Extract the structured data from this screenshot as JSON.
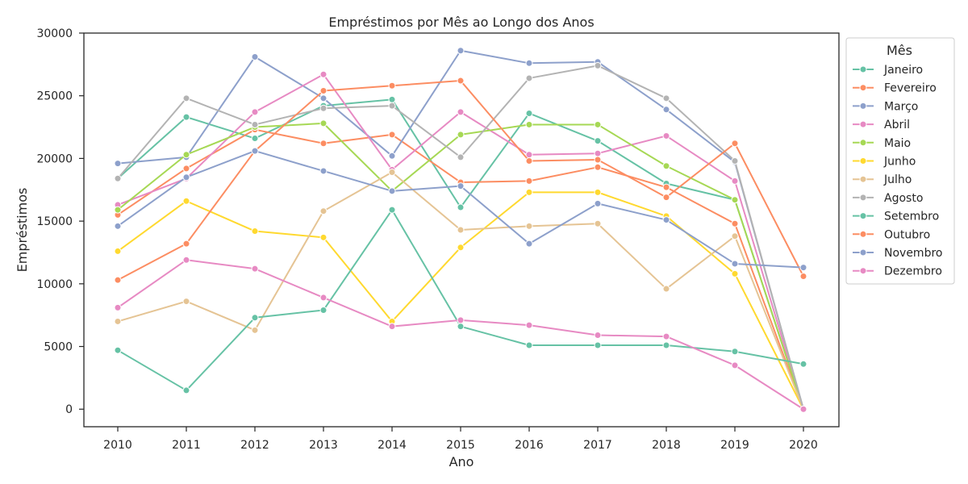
{
  "chart_data": {
    "type": "line",
    "title": "Empréstimos por Mês ao Longo dos Anos",
    "xlabel": "Ano",
    "ylabel": "Empréstimos",
    "x": [
      2010,
      2011,
      2012,
      2013,
      2014,
      2015,
      2016,
      2017,
      2018,
      2019,
      2020
    ],
    "x_tick_labels": [
      "2010",
      "2011",
      "2012",
      "2013",
      "2014",
      "2015",
      "2016",
      "2017",
      "2018",
      "2019",
      "2020"
    ],
    "ylim": [
      -1400,
      30000
    ],
    "y_ticks": [
      0,
      5000,
      10000,
      15000,
      20000,
      25000,
      30000
    ],
    "y_tick_labels": [
      "0",
      "5000",
      "10000",
      "15000",
      "20000",
      "25000",
      "30000"
    ],
    "grid": false,
    "legend": {
      "title": "Mês",
      "placement": "outside-right"
    },
    "series": [
      {
        "name": "Janeiro",
        "color": "#66c2a5",
        "values": [
          18400,
          23300,
          21600,
          24200,
          24700,
          16100,
          23600,
          21400,
          18000,
          16700,
          0
        ]
      },
      {
        "name": "Fevereiro",
        "color": "#fc8d62",
        "values": [
          15500,
          19200,
          22300,
          21200,
          21900,
          18100,
          18200,
          19300,
          17700,
          14800,
          0
        ]
      },
      {
        "name": "Março",
        "color": "#8da0cb",
        "values": [
          19600,
          20100,
          28100,
          24800,
          20200,
          28600,
          27600,
          27700,
          23900,
          19700,
          0
        ]
      },
      {
        "name": "Abril",
        "color": "#e78ac3",
        "values": [
          16300,
          18400,
          23700,
          26700,
          19100,
          23700,
          20300,
          20400,
          21800,
          18200,
          0
        ]
      },
      {
        "name": "Maio",
        "color": "#a6d854",
        "values": [
          15900,
          20300,
          22500,
          22800,
          17400,
          21900,
          22700,
          22700,
          19400,
          16700,
          0
        ]
      },
      {
        "name": "Junho",
        "color": "#ffd92f",
        "values": [
          12600,
          16600,
          14200,
          13700,
          7000,
          12900,
          17300,
          17300,
          15400,
          10800,
          0
        ]
      },
      {
        "name": "Julho",
        "color": "#e5c494",
        "values": [
          7000,
          8600,
          6300,
          15800,
          18900,
          14300,
          14600,
          14800,
          9600,
          13800,
          0
        ]
      },
      {
        "name": "Agosto",
        "color": "#b3b3b3",
        "values": [
          18400,
          24800,
          22700,
          24000,
          24200,
          20100,
          26400,
          27400,
          24800,
          19800,
          0
        ]
      },
      {
        "name": "Setembro",
        "color": "#66c2a5",
        "values": [
          4700,
          1500,
          7300,
          7900,
          15900,
          6600,
          5100,
          5100,
          5100,
          4600,
          3600
        ]
      },
      {
        "name": "Outubro",
        "color": "#fc8d62",
        "values": [
          10300,
          13200,
          20600,
          25400,
          25800,
          26200,
          19800,
          19900,
          16900,
          21200,
          10600
        ]
      },
      {
        "name": "Novembro",
        "color": "#8da0cb",
        "values": [
          14600,
          18500,
          20600,
          19000,
          17400,
          17800,
          13200,
          16400,
          15100,
          11600,
          11300
        ]
      },
      {
        "name": "Dezembro",
        "color": "#e78ac3",
        "values": [
          8100,
          11900,
          11200,
          8900,
          6600,
          7100,
          6700,
          5900,
          5800,
          3500,
          0
        ]
      }
    ]
  }
}
